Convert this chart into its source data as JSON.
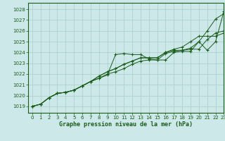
{
  "title": "Graphe pression niveau de la mer (hPa)",
  "bg_color": "#cce8e8",
  "line_color": "#1a5c1a",
  "grid_color": "#aacccc",
  "xlim": [
    -0.5,
    23
  ],
  "ylim": [
    1018.4,
    1028.6
  ],
  "yticks": [
    1019,
    1020,
    1021,
    1022,
    1023,
    1024,
    1025,
    1026,
    1027,
    1028
  ],
  "xticks": [
    0,
    1,
    2,
    3,
    4,
    5,
    6,
    7,
    8,
    9,
    10,
    11,
    12,
    13,
    14,
    15,
    16,
    17,
    18,
    19,
    20,
    21,
    22,
    23
  ],
  "series": [
    [
      1019.0,
      1019.2,
      1019.8,
      1020.2,
      1020.3,
      1020.5,
      1020.9,
      1021.3,
      1021.6,
      1021.9,
      1023.8,
      1023.9,
      1023.8,
      1023.8,
      1023.4,
      1023.3,
      1023.3,
      1024.0,
      1024.1,
      1024.1,
      1025.0,
      1026.0,
      1027.1,
      1027.6
    ],
    [
      1019.0,
      1019.2,
      1019.8,
      1020.2,
      1020.3,
      1020.5,
      1020.9,
      1021.3,
      1021.6,
      1022.0,
      1022.2,
      1022.5,
      1022.9,
      1023.2,
      1023.3,
      1023.3,
      1023.9,
      1024.1,
      1024.2,
      1024.4,
      1025.0,
      1024.2,
      1025.0,
      1027.8
    ],
    [
      1019.0,
      1019.2,
      1019.8,
      1020.2,
      1020.3,
      1020.5,
      1020.9,
      1021.3,
      1021.8,
      1022.2,
      1022.5,
      1022.9,
      1023.2,
      1023.5,
      1023.5,
      1023.5,
      1024.0,
      1024.2,
      1024.2,
      1024.3,
      1024.3,
      1025.2,
      1025.8,
      1026.0
    ],
    [
      1019.0,
      1019.2,
      1019.8,
      1020.2,
      1020.3,
      1020.5,
      1020.9,
      1021.3,
      1021.8,
      1022.2,
      1022.5,
      1022.9,
      1023.2,
      1023.5,
      1023.5,
      1023.5,
      1024.0,
      1024.3,
      1024.5,
      1025.0,
      1025.5,
      1025.5,
      1025.5,
      1025.8
    ]
  ]
}
